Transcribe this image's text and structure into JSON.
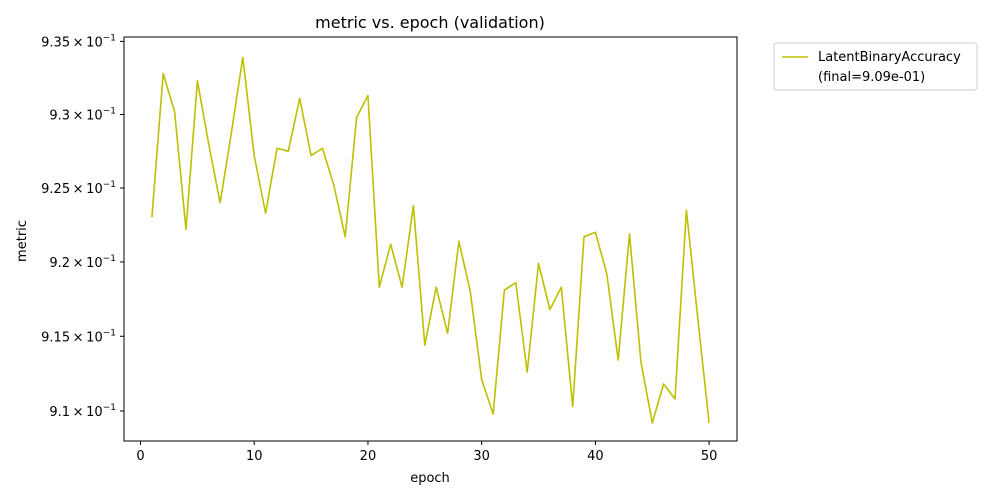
{
  "chart_data": {
    "type": "line",
    "title": "metric vs. epoch (validation)",
    "xlabel": "epoch",
    "ylabel": "metric",
    "xlim": [
      -1.45,
      52.45
    ],
    "ylim": [
      0.908,
      0.9353
    ],
    "yscale": "log",
    "xticks": [
      0,
      10,
      20,
      30,
      40,
      50
    ],
    "xtick_labels": [
      "0",
      "10",
      "20",
      "30",
      "40",
      "50"
    ],
    "yticks": [
      0.91,
      0.915,
      0.92,
      0.925,
      0.93,
      0.935
    ],
    "ytick_labels": [
      {
        "mantissa": "9.1",
        "exp": "−1"
      },
      {
        "mantissa": "9.15",
        "exp": "−1"
      },
      {
        "mantissa": "9.2",
        "exp": "−1"
      },
      {
        "mantissa": "9.25",
        "exp": "−1"
      },
      {
        "mantissa": "9.3",
        "exp": "−1"
      },
      {
        "mantissa": "9.35",
        "exp": "−1"
      }
    ],
    "grid": false,
    "legend_position": "outside-top-right",
    "series": [
      {
        "name": "LatentBinaryAccuracy",
        "legend_sub": "(final=9.09e-01)",
        "color": "#bfbf00",
        "x": [
          1,
          2,
          3,
          4,
          5,
          6,
          7,
          8,
          9,
          10,
          11,
          12,
          13,
          14,
          15,
          16,
          17,
          18,
          19,
          20,
          21,
          22,
          23,
          24,
          25,
          26,
          27,
          28,
          29,
          30,
          31,
          32,
          33,
          34,
          35,
          36,
          37,
          38,
          39,
          40,
          41,
          42,
          43,
          44,
          45,
          46,
          47,
          48,
          49,
          50
        ],
        "y": [
          0.923,
          0.9328,
          0.9302,
          0.9222,
          0.9323,
          0.928,
          0.924,
          0.9288,
          0.9339,
          0.9272,
          0.9233,
          0.9277,
          0.9275,
          0.9311,
          0.9272,
          0.9277,
          0.9252,
          0.9217,
          0.9298,
          0.9313,
          0.9183,
          0.9212,
          0.9183,
          0.9238,
          0.9144,
          0.9183,
          0.9152,
          0.9214,
          0.918,
          0.9121,
          0.9098,
          0.9181,
          0.9186,
          0.9126,
          0.9199,
          0.9168,
          0.9183,
          0.9103,
          0.9217,
          0.922,
          0.9192,
          0.9134,
          0.9219,
          0.9133,
          0.9092,
          0.9118,
          0.9108,
          0.9235,
          0.9162,
          0.9092
        ]
      }
    ]
  }
}
